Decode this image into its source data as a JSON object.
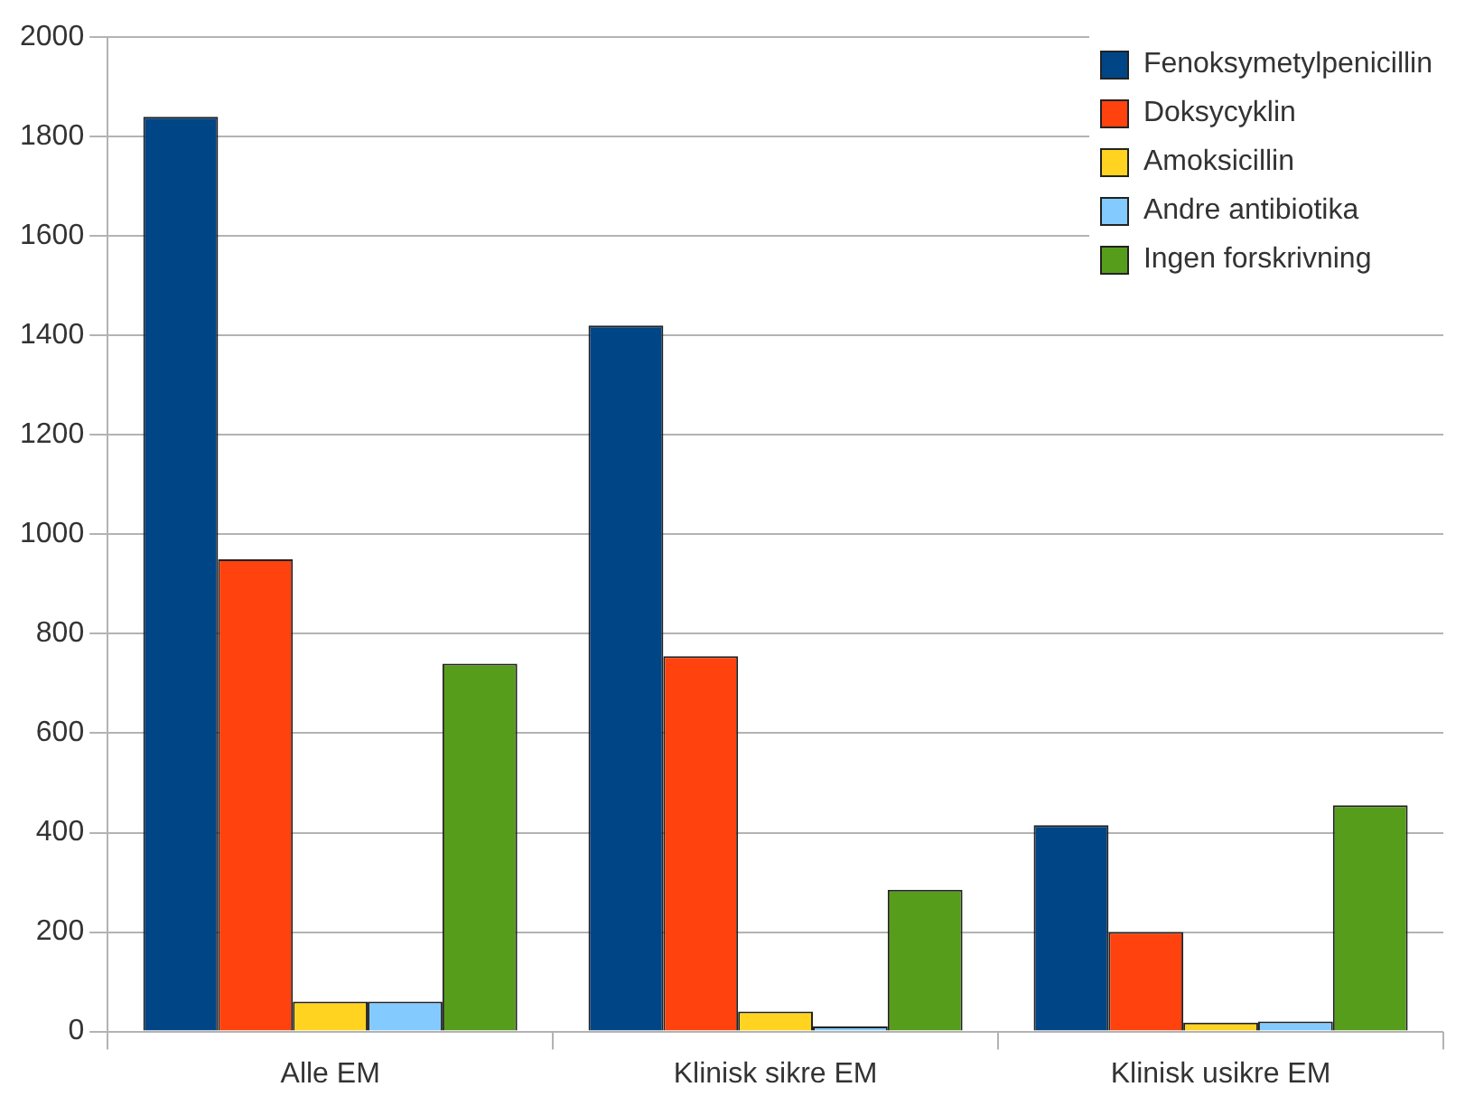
{
  "chart_data": {
    "type": "bar",
    "categories": [
      "Alle EM",
      "Klinisk sikre EM",
      "Klinisk usikre EM"
    ],
    "series": [
      {
        "name": "Fenoksymetylpenicillin",
        "color": "#004586",
        "values": [
          1840,
          1420,
          415
        ]
      },
      {
        "name": "Doksycyklin",
        "color": "#ff420e",
        "values": [
          950,
          755,
          200
        ]
      },
      {
        "name": "Amoksicillin",
        "color": "#ffd320",
        "values": [
          60,
          40,
          18
        ]
      },
      {
        "name": "Andre antibiotika",
        "color": "#83caff",
        "values": [
          60,
          10,
          20
        ]
      },
      {
        "name": "Ingen forskrivning",
        "color": "#579d1c",
        "values": [
          740,
          285,
          455
        ]
      }
    ],
    "ylim": [
      0,
      2000
    ],
    "yticks": [
      0,
      200,
      400,
      600,
      800,
      1000,
      1200,
      1400,
      1600,
      1800,
      2000
    ],
    "grid": "y",
    "legend": "top right"
  }
}
